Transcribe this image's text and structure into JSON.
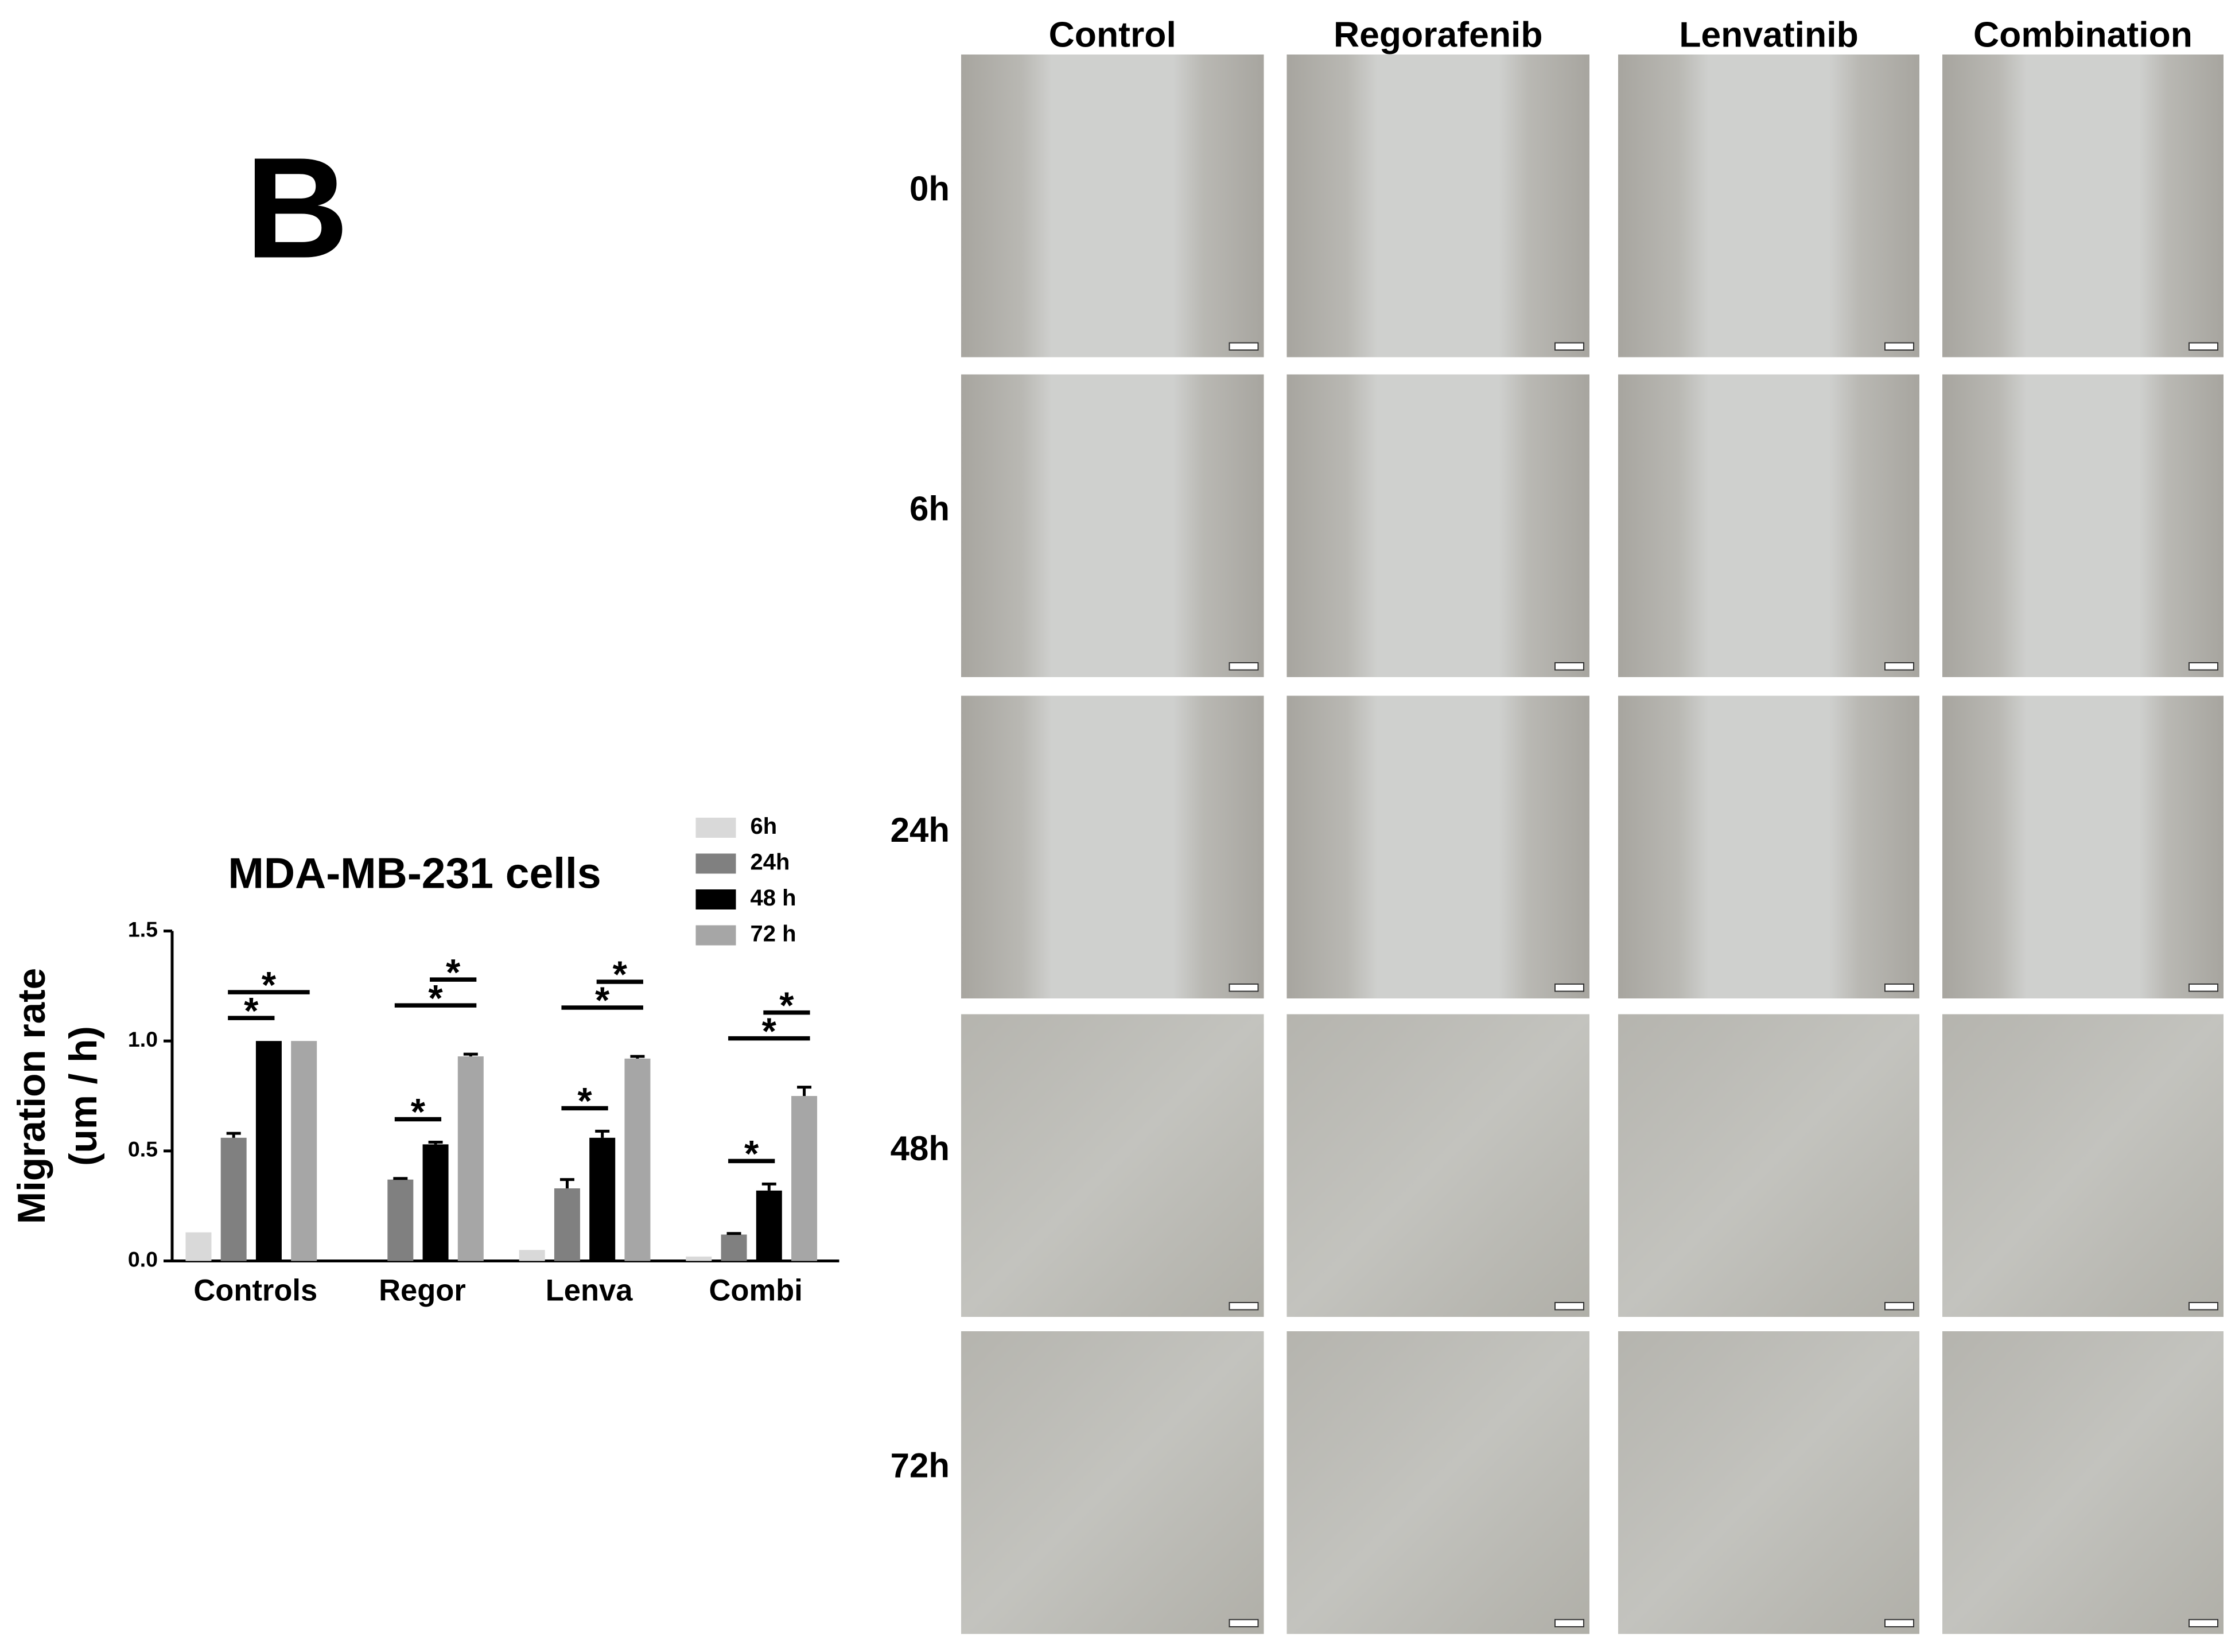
{
  "panel_label": "B",
  "chart_data": {
    "type": "bar",
    "title": "MDA-MB-231 cells",
    "y_label": [
      "Migration rate",
      "(um / h)"
    ],
    "categories": [
      "Controls",
      "Regor",
      "Lenva",
      "Combi"
    ],
    "series": [
      {
        "name": "6h",
        "color": "#d9d9d9",
        "values": [
          0.13,
          0,
          0.05,
          0.02
        ]
      },
      {
        "name": "24h",
        "color": "#808080",
        "values": [
          0.56,
          0.37,
          0.33,
          0.12
        ],
        "errors": [
          0.02,
          0.005,
          0.04,
          0.005
        ]
      },
      {
        "name": "48 h",
        "color": "#000000",
        "values": [
          1.0,
          0.53,
          0.56,
          0.32
        ],
        "errors": [
          0,
          0.01,
          0.03,
          0.03
        ]
      },
      {
        "name": "72 h",
        "color": "#a6a6a6",
        "values": [
          1.0,
          0.93,
          0.92,
          0.75
        ],
        "errors": [
          0,
          0.01,
          0.01,
          0.04
        ]
      }
    ],
    "ylim": [
      0,
      1.5
    ],
    "yticks": [
      {
        "value": 0,
        "label": "0.0"
      },
      {
        "value": 0.5,
        "label": "0.5"
      },
      {
        "value": 1,
        "label": "1.0"
      },
      {
        "value": 1.5,
        "label": "1.5"
      }
    ],
    "significance": [
      {
        "category": 0,
        "from": 1,
        "to": 2,
        "label": "*"
      },
      {
        "category": 0,
        "from": 1,
        "to": 3,
        "label": "*"
      },
      {
        "category": 1,
        "from": 1,
        "to": 2,
        "label": "*"
      },
      {
        "category": 1,
        "from": 1,
        "to": 3,
        "label": "*"
      },
      {
        "category": 1,
        "from": 2,
        "to": 3,
        "label": "*"
      },
      {
        "category": 2,
        "from": 1,
        "to": 2,
        "label": "*"
      },
      {
        "category": 2,
        "from": 1,
        "to": 3,
        "label": "*"
      },
      {
        "category": 2,
        "from": 2,
        "to": 3,
        "label": "*"
      },
      {
        "category": 3,
        "from": 1,
        "to": 2,
        "label": "*"
      },
      {
        "category": 3,
        "from": 1,
        "to": 3,
        "label": "*"
      },
      {
        "category": 3,
        "from": 2,
        "to": 3,
        "label": "*"
      }
    ]
  },
  "image_grid": {
    "columns": [
      "Control",
      "Regorafenib",
      "Lenvatinib",
      "Combination"
    ],
    "rows": [
      "0h",
      "6h",
      "24h",
      "48h",
      "72h"
    ]
  }
}
